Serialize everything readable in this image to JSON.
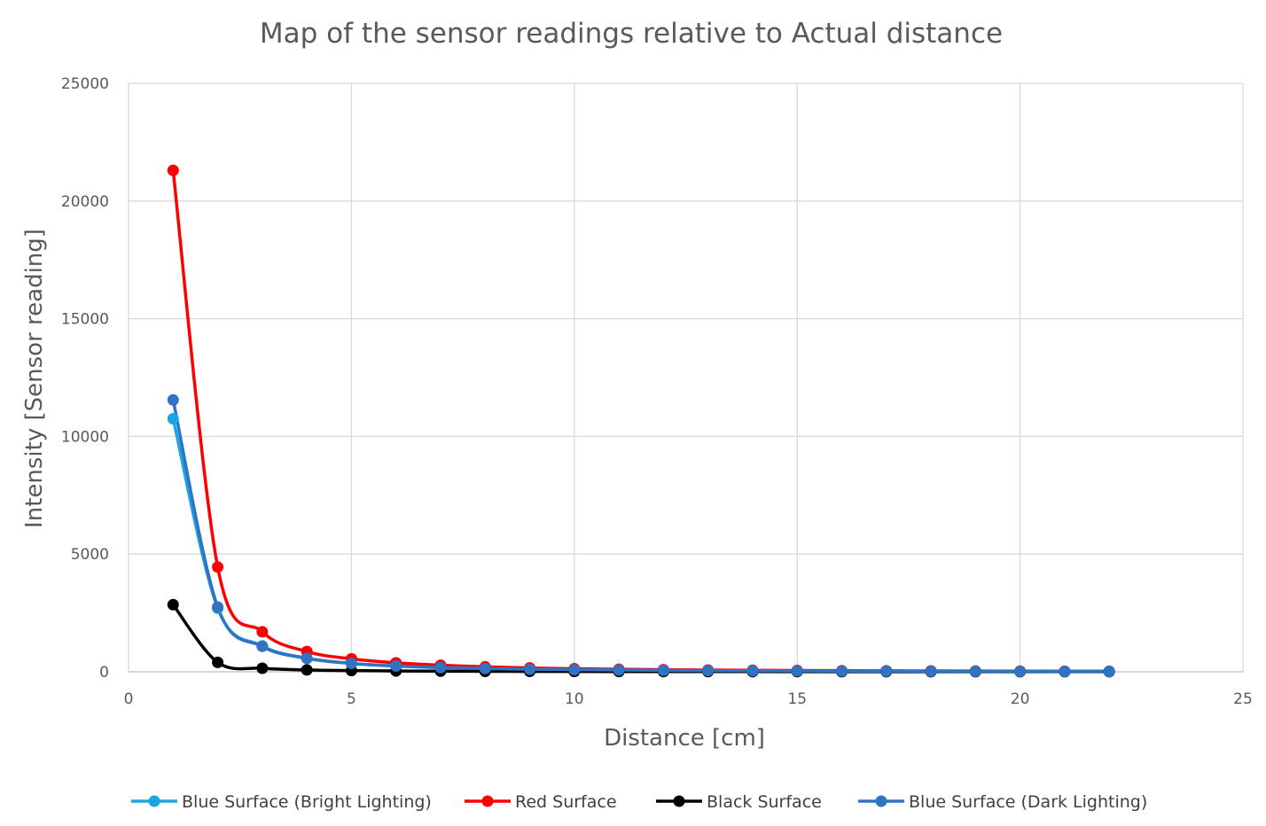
{
  "chart_data": {
    "type": "line",
    "title": "Map of the sensor readings relative to Actual distance",
    "xlabel": "Distance [cm]",
    "ylabel": "Intensity [Sensor reading]",
    "xlim": [
      0,
      25
    ],
    "ylim": [
      0,
      25000
    ],
    "x_ticks": [
      0,
      5,
      10,
      15,
      20,
      25
    ],
    "y_ticks": [
      0,
      5000,
      10000,
      15000,
      20000,
      25000
    ],
    "grid": true,
    "smooth": true,
    "legend_position": "bottom",
    "x": [
      1,
      2,
      3,
      4,
      5,
      6,
      7,
      8,
      9,
      10,
      11,
      12,
      13,
      14,
      15,
      16,
      17,
      18,
      19,
      20,
      21,
      22
    ],
    "series": [
      {
        "name": "Blue Surface (Bright Lighting)",
        "color": "#1ba6e3",
        "values": [
          10750,
          2700,
          1100,
          580,
          360,
          250,
          180,
          140,
          110,
          90,
          75,
          62,
          52,
          45,
          38,
          33,
          29,
          25,
          22,
          19,
          17,
          15
        ]
      },
      {
        "name": "Red Surface",
        "color": "#ff0000",
        "values": [
          21300,
          4450,
          1700,
          860,
          550,
          380,
          280,
          210,
          165,
          130,
          108,
          90,
          76,
          65,
          56,
          48,
          42,
          37,
          32,
          28,
          25,
          22
        ]
      },
      {
        "name": "Black Surface",
        "color": "#000000",
        "values": [
          2850,
          400,
          150,
          80,
          50,
          35,
          26,
          20,
          16,
          13,
          11,
          9,
          8,
          7,
          6,
          5,
          5,
          4,
          4,
          3,
          3,
          3
        ]
      },
      {
        "name": "Blue Surface (Dark Lighting)",
        "color": "#2f74c2",
        "values": [
          11550,
          2750,
          1080,
          570,
          355,
          245,
          178,
          138,
          108,
          88,
          73,
          61,
          51,
          44,
          37,
          32,
          28,
          24,
          21,
          19,
          16,
          14
        ]
      }
    ]
  }
}
